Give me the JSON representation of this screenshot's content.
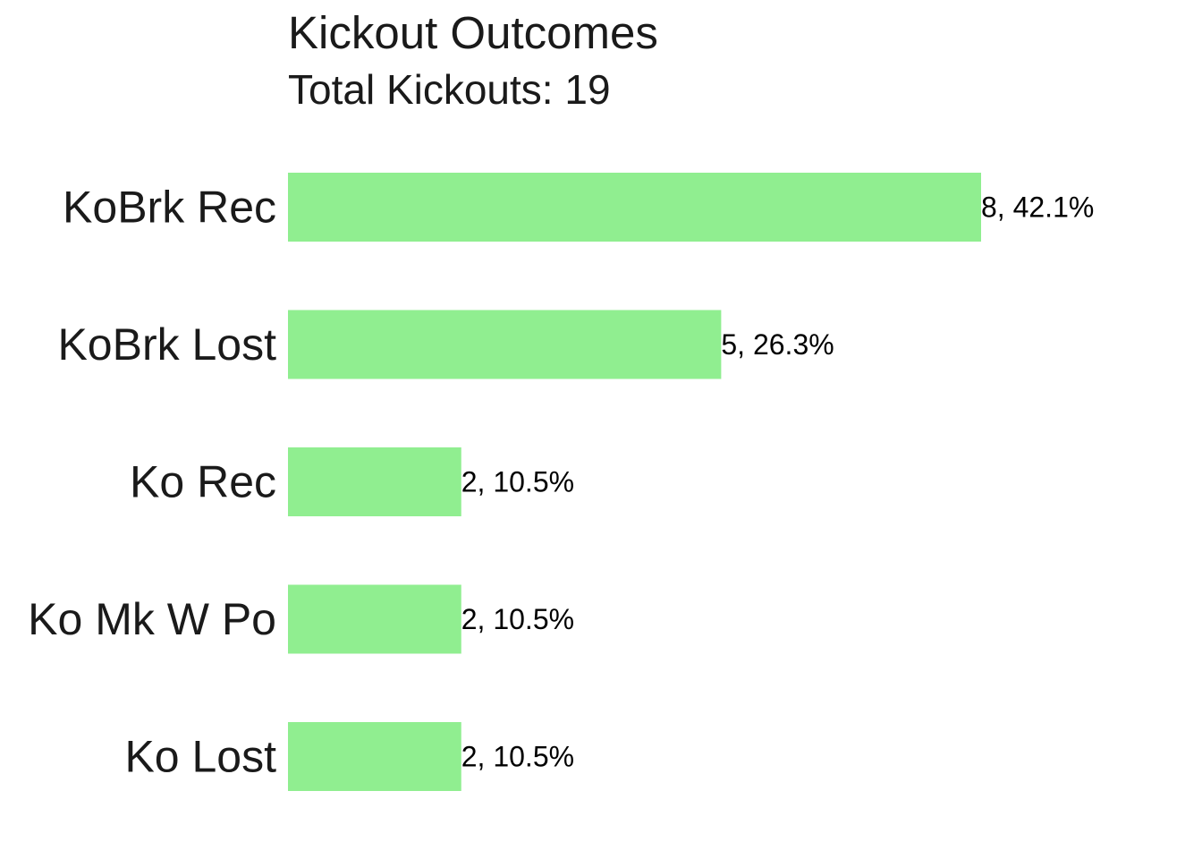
{
  "colors": {
    "bar": "#90ee90",
    "text": "#1a1a1a",
    "background": "#ffffff"
  },
  "chart_data": {
    "type": "bar",
    "orientation": "horizontal",
    "title": "Kickout Outcomes",
    "subtitle": "Total Kickouts: 19",
    "categories": [
      "KoBrk Rec",
      "KoBrk Lost",
      "Ko Rec",
      "Ko Mk W Po",
      "Ko Lost"
    ],
    "values": [
      8,
      5,
      2,
      2,
      2
    ],
    "data_labels": [
      "8, 42.1%",
      "5, 26.3%",
      "2, 10.5%",
      "2, 10.5%",
      "2, 10.5%"
    ],
    "xlabel": "",
    "ylabel": "",
    "xlim": [
      0,
      8
    ],
    "grid": false,
    "legend": "none"
  }
}
